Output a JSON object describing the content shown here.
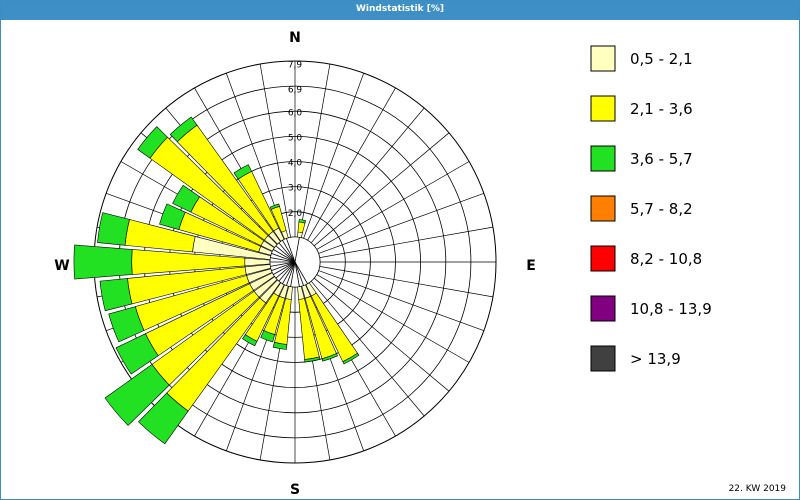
{
  "window": {
    "title": "Windstatistik [%]"
  },
  "footer": {
    "week": "22. KW 2019"
  },
  "chart_data": {
    "type": "polar-bar",
    "title": "Windstatistik [%]",
    "directions_labels": [
      "N",
      "E",
      "S",
      "W"
    ],
    "radial_ticks": [
      "2,0",
      "3,0",
      "4,0",
      "5,0",
      "6,0",
      "6,9",
      "7,9"
    ],
    "radial_tick_values": [
      2.0,
      3.0,
      4.0,
      5.0,
      6.0,
      6.9,
      7.9
    ],
    "rmax": 8.0,
    "calm_ring": 1.0,
    "sectors": 36,
    "speed_classes": [
      "0,5 - 2,1",
      "2,1 - 3,6",
      "3,6 - 5,7",
      "5,7 - 8,2",
      "8,2 - 10,8",
      "10,8 - 13,9",
      "> 13,9"
    ],
    "class_colors": [
      "#ffffc0",
      "#ffff00",
      "#22e022",
      "#ff8000",
      "#ff0000",
      "#800080",
      "#404040"
    ],
    "series": [
      {
        "dir": 10,
        "values": [
          0.2,
          0.4,
          0.1
        ]
      },
      {
        "dir": 340,
        "values": [
          0.3,
          1.0,
          0.1
        ]
      },
      {
        "dir": 330,
        "values": [
          0.5,
          2.5,
          0.3
        ]
      },
      {
        "dir": 320,
        "values": [
          0.5,
          5.2,
          0.4
        ]
      },
      {
        "dir": 310,
        "values": [
          0.5,
          5.6,
          0.6
        ]
      },
      {
        "dir": 300,
        "values": [
          0.5,
          3.1,
          0.8
        ]
      },
      {
        "dir": 290,
        "values": [
          0.5,
          3.3,
          0.8
        ]
      },
      {
        "dir": 280,
        "values": [
          3.1,
          2.7,
          1.1
        ]
      },
      {
        "dir": 270,
        "values": [
          1.0,
          4.5,
          2.3
        ]
      },
      {
        "dir": 260,
        "values": [
          1.0,
          4.7,
          1.1
        ]
      },
      {
        "dir": 250,
        "values": [
          1.0,
          4.6,
          1.1
        ]
      },
      {
        "dir": 240,
        "values": [
          1.0,
          4.6,
          1.3
        ]
      },
      {
        "dir": 230,
        "values": [
          1.0,
          5.0,
          2.3
        ]
      },
      {
        "dir": 220,
        "values": [
          1.0,
          5.3,
          1.6
        ]
      },
      {
        "dir": 210,
        "values": [
          0.5,
          2.0,
          0.2
        ]
      },
      {
        "dir": 200,
        "values": [
          0.5,
          1.5,
          0.3
        ]
      },
      {
        "dir": 190,
        "values": [
          0.5,
          1.8,
          0.2
        ]
      },
      {
        "dir": 170,
        "values": [
          0.5,
          2.4,
          0.1
        ]
      },
      {
        "dir": 160,
        "values": [
          0.5,
          2.5,
          0.1
        ]
      },
      {
        "dir": 150,
        "values": [
          0.5,
          2.9,
          0.1
        ]
      }
    ],
    "legend_position": "right"
  }
}
